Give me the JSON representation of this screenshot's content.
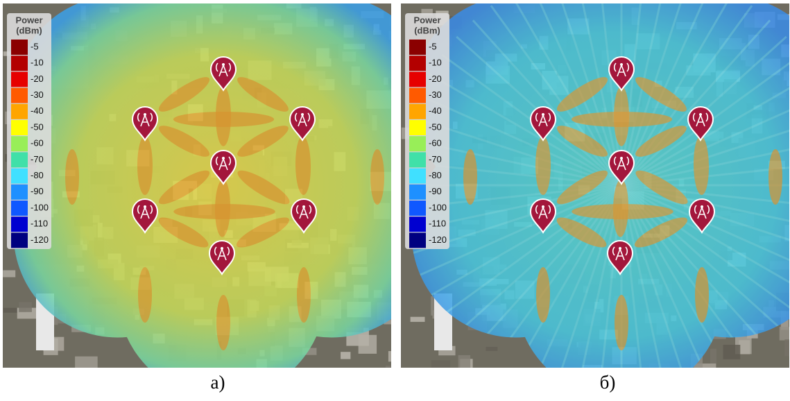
{
  "legend": {
    "title": [
      "Power",
      "(dBm)"
    ],
    "items": [
      {
        "label": -5,
        "color": "#8b0000"
      },
      {
        "label": -10,
        "color": "#b30000"
      },
      {
        "label": -20,
        "color": "#e60000"
      },
      {
        "label": -30,
        "color": "#ff5a00"
      },
      {
        "label": -40,
        "color": "#ffa500"
      },
      {
        "label": -50,
        "color": "#ffff00"
      },
      {
        "label": -60,
        "color": "#98ee58"
      },
      {
        "label": -70,
        "color": "#40e0a8"
      },
      {
        "label": -80,
        "color": "#40e0ff"
      },
      {
        "label": -90,
        "color": "#1e90ff"
      },
      {
        "label": -100,
        "color": "#1058ff"
      },
      {
        "label": -110,
        "color": "#0000d0"
      },
      {
        "label": -120,
        "color": "#000080"
      }
    ]
  },
  "panels": [
    {
      "caption": "a)"
    },
    {
      "caption": "б)"
    }
  ]
}
